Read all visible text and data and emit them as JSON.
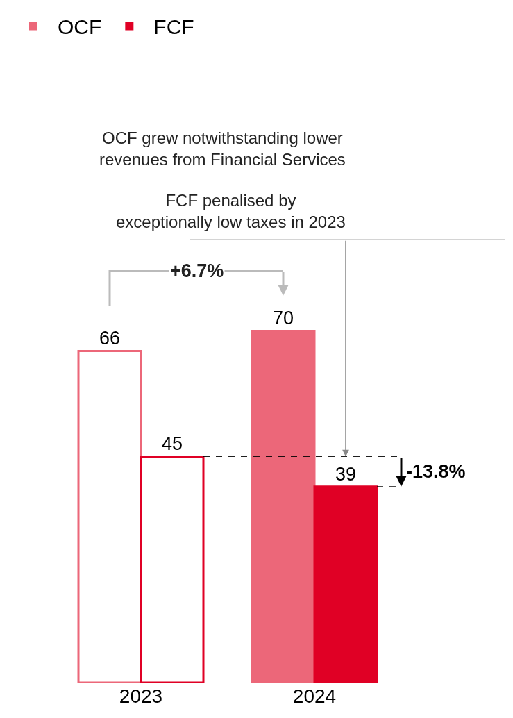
{
  "chart_data": {
    "type": "bar",
    "categories": [
      "2023",
      "2024"
    ],
    "series": [
      {
        "name": "OCF",
        "color": "#ec6779",
        "colors": [
          "#ffffff",
          "#ec6779"
        ],
        "values": [
          66,
          70
        ]
      },
      {
        "name": "FCF",
        "color": "#e00025",
        "colors": [
          "#ffffff",
          "#e00025"
        ],
        "values": [
          45,
          39
        ]
      }
    ],
    "data_labels": true,
    "legend": "top left",
    "grid": false,
    "annotations": [
      "OCF grew notwithstanding lower revenues from Financial Services",
      "FCF penalised by exceptionally low taxes in 2023",
      "+6.7%",
      "-13.8%"
    ]
  }
}
